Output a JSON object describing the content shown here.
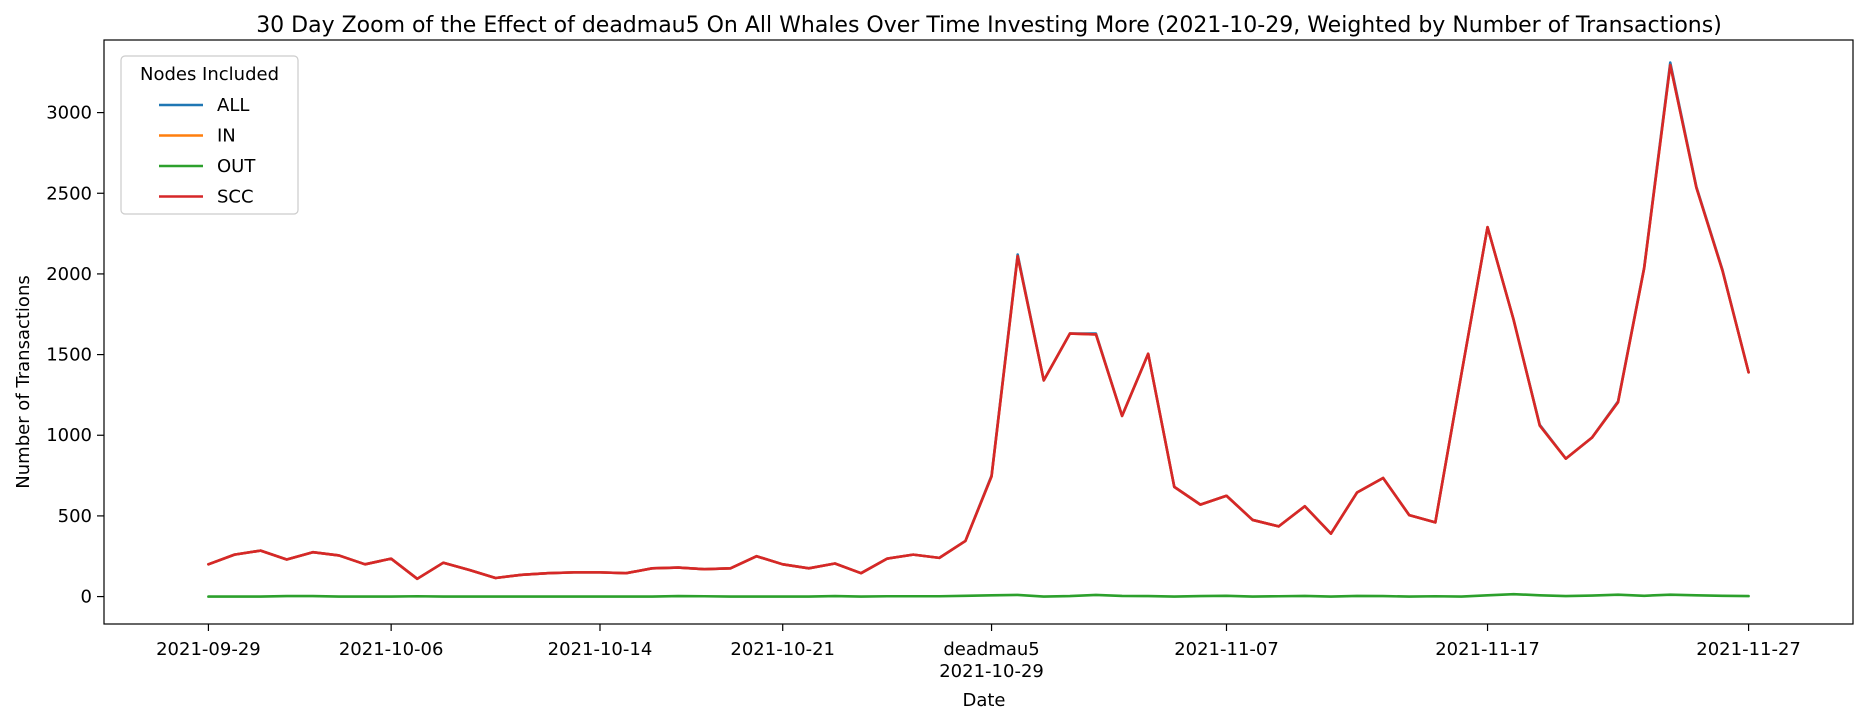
{
  "chart_data": {
    "type": "line",
    "title": "30 Day Zoom of the Effect of deadmau5 On All Whales Over Time Investing More (2021-10-29, Weighted by Number of Transactions)",
    "xlabel": "Date",
    "ylabel": "Number of Transactions",
    "x_range": [
      "2021-09-25",
      "2021-12-01"
    ],
    "ylim": [
      -170,
      3450
    ],
    "grid": false,
    "legend": {
      "title": "Nodes Included",
      "placement": "top-left"
    },
    "x_ticks": [
      {
        "date": "2021-09-29",
        "label": "2021-09-29"
      },
      {
        "date": "2021-10-06",
        "label": "2021-10-06"
      },
      {
        "date": "2021-10-14",
        "label": "2021-10-14"
      },
      {
        "date": "2021-10-21",
        "label": "2021-10-21"
      },
      {
        "date": "2021-10-29",
        "label": "deadmau5",
        "label2": "2021-10-29"
      },
      {
        "date": "2021-11-07",
        "label": "2021-11-07"
      },
      {
        "date": "2021-11-17",
        "label": "2021-11-17"
      },
      {
        "date": "2021-11-27",
        "label": "2021-11-27"
      }
    ],
    "y_ticks": [
      0,
      500,
      1000,
      1500,
      2000,
      2500,
      3000
    ],
    "x": [
      "2021-09-29",
      "2021-09-30",
      "2021-10-01",
      "2021-10-02",
      "2021-10-03",
      "2021-10-04",
      "2021-10-05",
      "2021-10-06",
      "2021-10-07",
      "2021-10-08",
      "2021-10-09",
      "2021-10-10",
      "2021-10-11",
      "2021-10-12",
      "2021-10-13",
      "2021-10-14",
      "2021-10-15",
      "2021-10-16",
      "2021-10-17",
      "2021-10-18",
      "2021-10-19",
      "2021-10-20",
      "2021-10-21",
      "2021-10-22",
      "2021-10-23",
      "2021-10-24",
      "2021-10-25",
      "2021-10-26",
      "2021-10-27",
      "2021-10-28",
      "2021-10-29",
      "2021-10-30",
      "2021-10-31",
      "2021-11-01",
      "2021-11-02",
      "2021-11-03",
      "2021-11-04",
      "2021-11-05",
      "2021-11-06",
      "2021-11-07",
      "2021-11-08",
      "2021-11-09",
      "2021-11-10",
      "2021-11-11",
      "2021-11-12",
      "2021-11-13",
      "2021-11-14",
      "2021-11-15",
      "2021-11-16",
      "2021-11-17",
      "2021-11-18",
      "2021-11-19",
      "2021-11-20",
      "2021-11-21",
      "2021-11-22",
      "2021-11-23",
      "2021-11-24",
      "2021-11-25",
      "2021-11-26",
      "2021-11-27"
    ],
    "series": [
      {
        "name": "ALL",
        "color": "#1f77b4",
        "values": [
          200,
          260,
          285,
          230,
          275,
          255,
          200,
          235,
          110,
          210,
          165,
          115,
          135,
          145,
          150,
          150,
          145,
          175,
          180,
          170,
          175,
          250,
          200,
          175,
          205,
          145,
          235,
          260,
          240,
          345,
          750,
          2120,
          1340,
          1630,
          1630,
          1120,
          1505,
          680,
          570,
          625,
          475,
          435,
          560,
          390,
          645,
          735,
          505,
          460,
          1380,
          2290,
          1715,
          1065,
          855,
          985,
          1210,
          2040,
          3310,
          2540,
          2025,
          1390
        ]
      },
      {
        "name": "IN",
        "color": "#ff7f0e",
        "values": [
          200,
          260,
          285,
          230,
          275,
          255,
          200,
          235,
          110,
          210,
          165,
          115,
          135,
          145,
          150,
          150,
          145,
          175,
          180,
          170,
          175,
          250,
          200,
          175,
          205,
          145,
          235,
          260,
          240,
          345,
          745,
          2110,
          1340,
          1630,
          1625,
          1120,
          1505,
          680,
          570,
          625,
          475,
          435,
          560,
          390,
          645,
          735,
          505,
          460,
          1380,
          2290,
          1715,
          1060,
          855,
          985,
          1205,
          2035,
          3295,
          2535,
          2020,
          1390
        ]
      },
      {
        "name": "OUT",
        "color": "#2ca02c",
        "values": [
          0,
          0,
          0,
          3,
          3,
          0,
          0,
          0,
          2,
          0,
          0,
          0,
          0,
          0,
          0,
          0,
          0,
          0,
          3,
          2,
          0,
          0,
          0,
          0,
          3,
          0,
          2,
          2,
          2,
          5,
          8,
          10,
          0,
          3,
          10,
          4,
          3,
          0,
          3,
          5,
          0,
          2,
          4,
          0,
          4,
          3,
          0,
          2,
          0,
          8,
          15,
          8,
          3,
          6,
          12,
          5,
          12,
          8,
          5,
          3
        ]
      },
      {
        "name": "SCC",
        "color": "#d62728",
        "values": [
          200,
          260,
          285,
          230,
          275,
          255,
          200,
          235,
          110,
          210,
          165,
          115,
          135,
          145,
          150,
          150,
          145,
          175,
          180,
          170,
          175,
          250,
          200,
          175,
          205,
          145,
          235,
          260,
          240,
          345,
          745,
          2110,
          1340,
          1630,
          1625,
          1120,
          1505,
          680,
          570,
          625,
          475,
          435,
          560,
          390,
          645,
          735,
          505,
          460,
          1380,
          2290,
          1715,
          1060,
          855,
          985,
          1205,
          2035,
          3295,
          2535,
          2020,
          1390
        ]
      }
    ]
  }
}
